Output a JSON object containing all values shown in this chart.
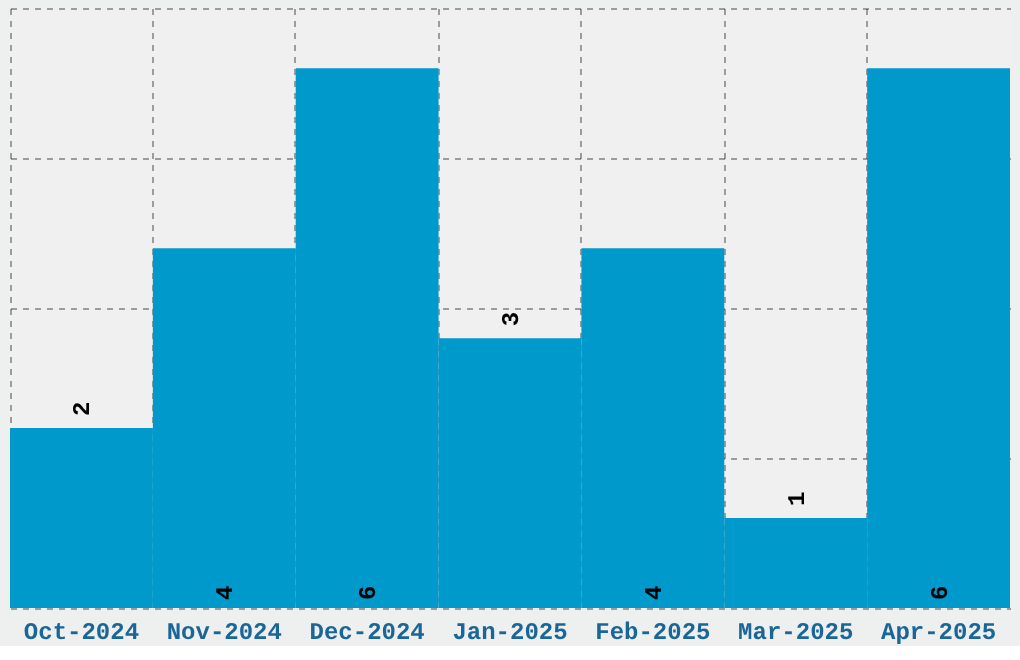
{
  "chart_data": {
    "type": "bar",
    "categories": [
      "Oct-2024",
      "Nov-2024",
      "Dec-2024",
      "Jan-2025",
      "Feb-2025",
      "Mar-2025",
      "Apr-2025"
    ],
    "values": [
      2,
      4,
      6,
      3,
      4,
      1,
      6
    ],
    "color": "#0099cc",
    "ylim": [
      0,
      6.67
    ],
    "yticks": [
      {
        "value": 0,
        "label": null
      },
      {
        "value": 1.67,
        "label": null
      },
      {
        "value": 3.33,
        "label": null
      },
      {
        "value": 5,
        "label": null
      },
      {
        "value": 6.67,
        "label": null
      }
    ],
    "tick_labels": "x",
    "grid": true,
    "data_labels": true
  }
}
